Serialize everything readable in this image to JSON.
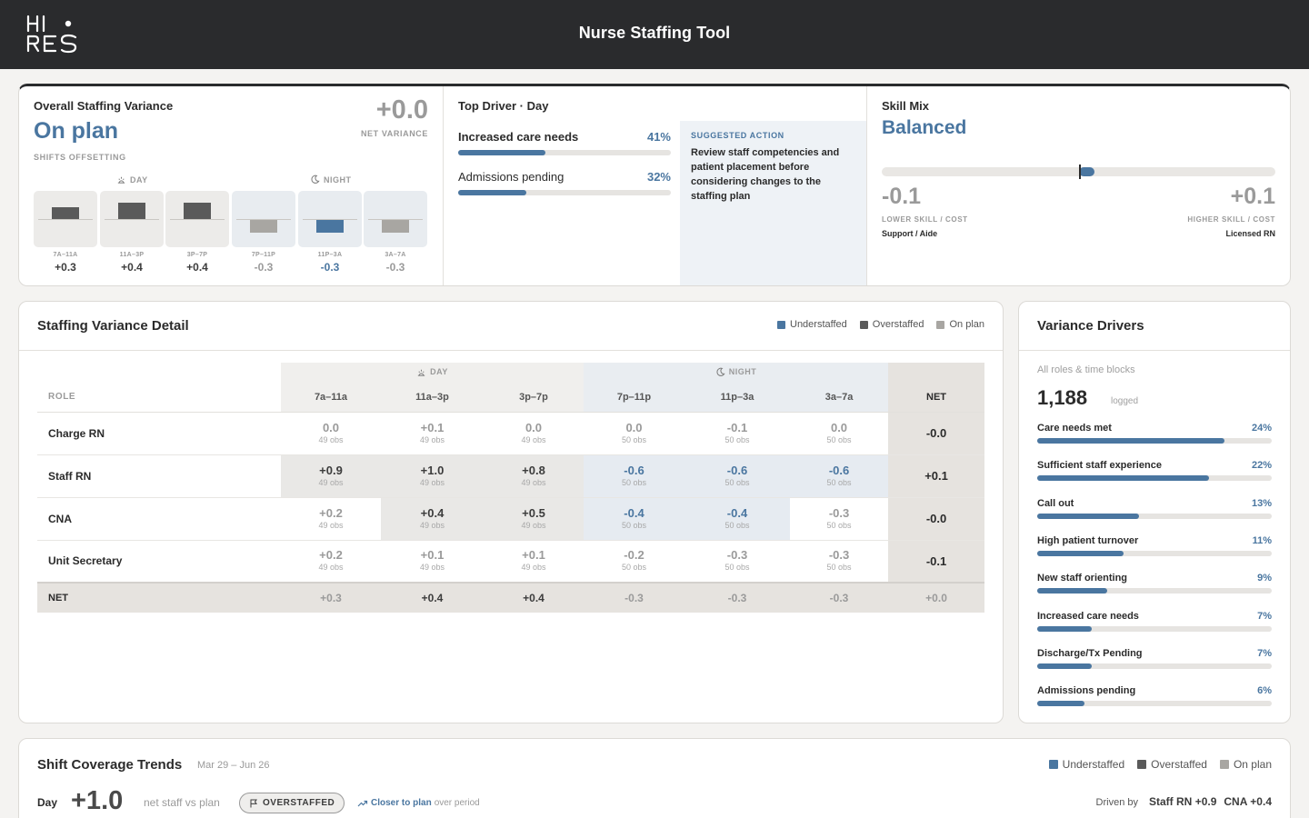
{
  "app": {
    "title": "Nurse Staffing Tool",
    "logo_text": "HI RES"
  },
  "overall": {
    "title": "Overall Staffing Variance",
    "status": "On plan",
    "sub": "SHIFTS OFFSETTING",
    "net_value": "+0.0",
    "net_caption": "NET VARIANCE",
    "day_label": "DAY",
    "night_label": "NIGHT",
    "blocks": [
      {
        "label": "7A–11A",
        "value": "+0.3",
        "kind": "over"
      },
      {
        "label": "11A–3P",
        "value": "+0.4",
        "kind": "over"
      },
      {
        "label": "3P–7P",
        "value": "+0.4",
        "kind": "over"
      },
      {
        "label": "7P–11P",
        "value": "-0.3",
        "kind": "onplan"
      },
      {
        "label": "11P–3A",
        "value": "-0.3",
        "kind": "under"
      },
      {
        "label": "3A–7A",
        "value": "-0.3",
        "kind": "onplan"
      }
    ]
  },
  "top_driver": {
    "title": "Top Driver · Day",
    "items": [
      {
        "name": "Increased care needs",
        "pct": "41%",
        "fraction": 0.41
      },
      {
        "name": "Admissions pending",
        "pct": "32%",
        "fraction": 0.32
      }
    ],
    "action_caption": "SUGGESTED ACTION",
    "action_text": "Review staff competencies and patient placement before considering changes to the staffing plan"
  },
  "skill_mix": {
    "title": "Skill Mix",
    "status": "Balanced",
    "low_value": "-0.1",
    "high_value": "+0.1",
    "low_caption": "LOWER SKILL / COST",
    "high_caption": "HIGHER SKILL / COST",
    "low_sub": "Support / Aide",
    "high_sub": "Licensed RN",
    "level": 0.04
  },
  "detail": {
    "title": "Staffing Variance Detail",
    "legend": [
      "Understaffed",
      "Overstaffed",
      "On plan"
    ],
    "day_label": "DAY",
    "night_label": "NIGHT",
    "role_header": "ROLE",
    "net_header": "NET",
    "columns": [
      "7a–11a",
      "11a–3p",
      "3p–7p",
      "7p–11p",
      "11p–3a",
      "3a–7a"
    ],
    "rows": [
      {
        "role": "Charge RN",
        "net": "-0.0",
        "cells": [
          {
            "v": "0.0",
            "o": "49 obs"
          },
          {
            "v": "+0.1",
            "o": "49 obs"
          },
          {
            "v": "0.0",
            "o": "49 obs"
          },
          {
            "v": "0.0",
            "o": "50 obs"
          },
          {
            "v": "-0.1",
            "o": "50 obs"
          },
          {
            "v": "0.0",
            "o": "50 obs"
          }
        ]
      },
      {
        "role": "Staff RN",
        "net": "+0.1",
        "cells": [
          {
            "v": "+0.9",
            "o": "49 obs"
          },
          {
            "v": "+1.0",
            "o": "49 obs"
          },
          {
            "v": "+0.8",
            "o": "49 obs"
          },
          {
            "v": "-0.6",
            "o": "50 obs"
          },
          {
            "v": "-0.6",
            "o": "50 obs"
          },
          {
            "v": "-0.6",
            "o": "50 obs"
          }
        ]
      },
      {
        "role": "CNA",
        "net": "-0.0",
        "cells": [
          {
            "v": "+0.2",
            "o": "49 obs"
          },
          {
            "v": "+0.4",
            "o": "49 obs"
          },
          {
            "v": "+0.5",
            "o": "49 obs"
          },
          {
            "v": "-0.4",
            "o": "50 obs"
          },
          {
            "v": "-0.4",
            "o": "50 obs"
          },
          {
            "v": "-0.3",
            "o": "50 obs"
          }
        ]
      },
      {
        "role": "Unit Secretary",
        "net": "-0.1",
        "cells": [
          {
            "v": "+0.2",
            "o": "49 obs"
          },
          {
            "v": "+0.1",
            "o": "49 obs"
          },
          {
            "v": "+0.1",
            "o": "49 obs"
          },
          {
            "v": "-0.2",
            "o": "50 obs"
          },
          {
            "v": "-0.3",
            "o": "50 obs"
          },
          {
            "v": "-0.3",
            "o": "50 obs"
          }
        ]
      }
    ],
    "net_row": {
      "label": "NET",
      "values": [
        "+0.3",
        "+0.4",
        "+0.4",
        "-0.3",
        "-0.3",
        "-0.3"
      ],
      "total": "+0.0"
    }
  },
  "drivers": {
    "title": "Variance Drivers",
    "sub": "All roles & time blocks",
    "count": "1,188",
    "count_label": "logged",
    "items": [
      {
        "name": "Care needs met",
        "pct": "24%",
        "fraction": 0.24
      },
      {
        "name": "Sufficient staff experience",
        "pct": "22%",
        "fraction": 0.22
      },
      {
        "name": "Call out",
        "pct": "13%",
        "fraction": 0.13
      },
      {
        "name": "High patient turnover",
        "pct": "11%",
        "fraction": 0.11
      },
      {
        "name": "New staff orienting",
        "pct": "9%",
        "fraction": 0.09
      },
      {
        "name": "Increased care needs",
        "pct": "7%",
        "fraction": 0.07
      },
      {
        "name": "Discharge/Tx Pending",
        "pct": "7%",
        "fraction": 0.07
      },
      {
        "name": "Admissions pending",
        "pct": "6%",
        "fraction": 0.06
      }
    ]
  },
  "trends": {
    "title": "Shift Coverage Trends",
    "range": "Mar 29 – Jun 26",
    "legend": [
      "Understaffed",
      "Overstaffed",
      "On plan"
    ],
    "day_label": "Day",
    "day_value": "+1.0",
    "net_text": "net staff vs plan",
    "badge": "OVERSTAFFED",
    "closer_a": "Closer to plan",
    "closer_b": "over period",
    "driven_label": "Driven by",
    "driven": [
      {
        "role": "Staff RN",
        "value": "+0.9"
      },
      {
        "role": "CNA",
        "value": "+0.4"
      }
    ]
  },
  "colors": {
    "understaffed": "#4a76a0",
    "overstaffed": "#5a5a5a",
    "onplan": "#a8a6a2",
    "topbar": "#2a2b2d"
  }
}
